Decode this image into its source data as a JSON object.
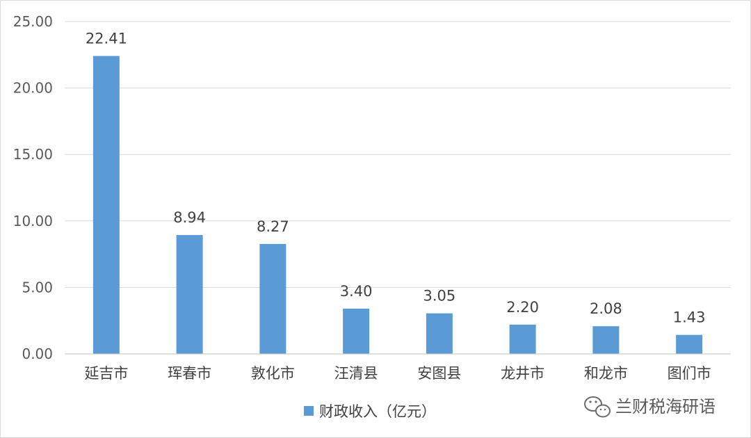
{
  "chart_data": {
    "type": "bar",
    "categories": [
      "延吉市",
      "珲春市",
      "敦化市",
      "汪清县",
      "安图县",
      "龙井市",
      "和龙市",
      "图们市"
    ],
    "series": [
      {
        "name": "财政收入（亿元）",
        "values": [
          22.41,
          8.94,
          8.27,
          3.4,
          3.05,
          2.2,
          2.08,
          1.43
        ]
      }
    ],
    "value_labels": [
      "22.41",
      "8.94",
      "8.27",
      "3.40",
      "3.05",
      "2.20",
      "2.08",
      "1.43"
    ],
    "yticks": [
      "0.00",
      "5.00",
      "10.00",
      "15.00",
      "20.00",
      "25.00"
    ],
    "ylim": [
      0,
      25
    ],
    "ytick_step": 5,
    "grid": true,
    "legend_position": "bottom",
    "bar_color": "#5b9bd5",
    "grid_color": "#d9d9d9"
  },
  "legend": {
    "label": "财政收入（亿元）"
  },
  "watermark": {
    "text": "兰财税海研语"
  }
}
